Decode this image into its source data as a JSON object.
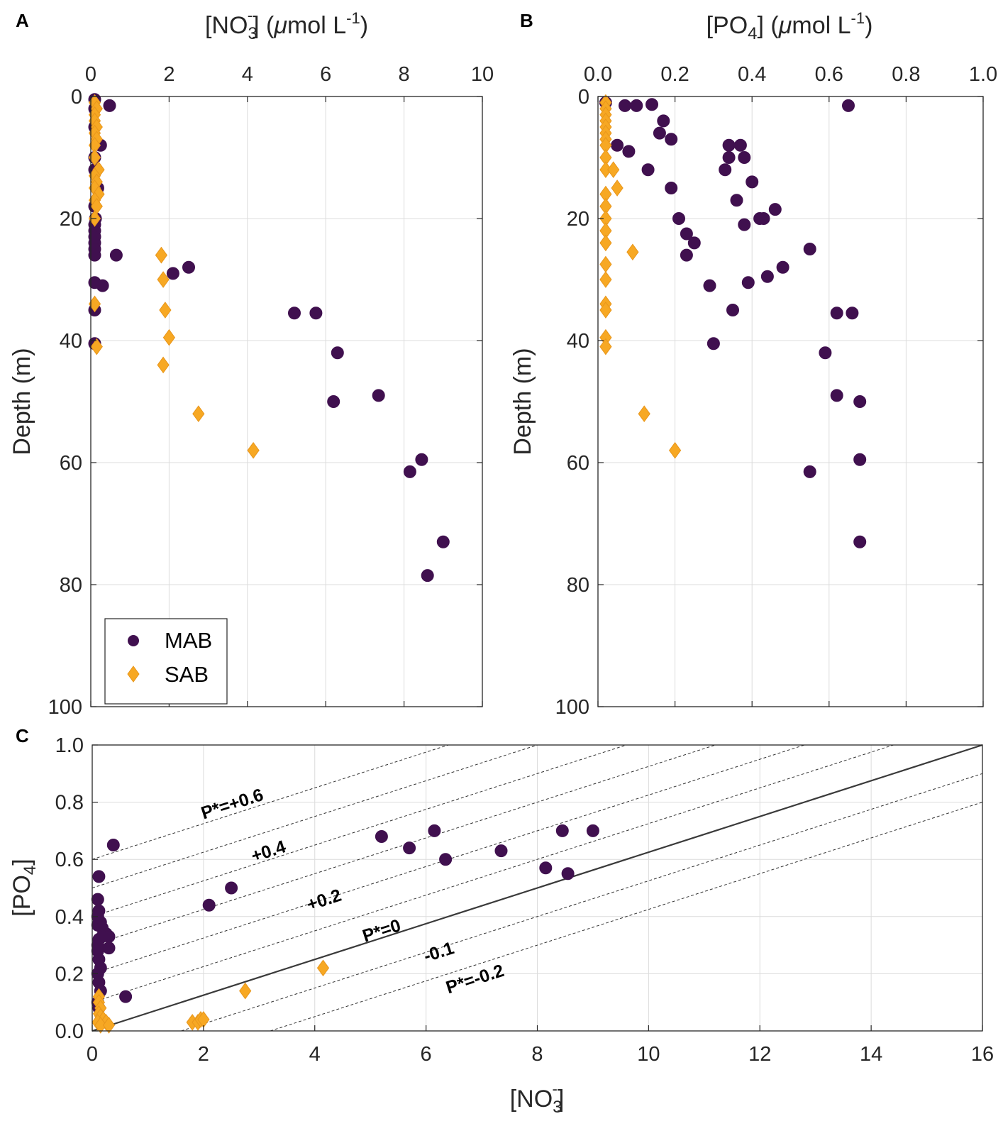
{
  "colors": {
    "MAB": "#40104f",
    "SAB": "#f7a823",
    "redfield": "#3a3a3a",
    "contour": "#333333"
  },
  "chart_data": [
    {
      "panel": "A",
      "type": "scatter",
      "xlabel": {
        "main": "[NO",
        "sub": "3",
        "sup": "-",
        "units_pre": "] (",
        "mu": "μ",
        "units_post": "mol L",
        "units_sup": "-1",
        "close": ")"
      },
      "ylabel": "Depth (m)",
      "xlim": [
        0,
        10
      ],
      "ylim": [
        0,
        100
      ],
      "xticks": [
        "0",
        "2",
        "4",
        "6",
        "8",
        "10"
      ],
      "yticks": [
        "0",
        "20",
        "40",
        "60",
        "80",
        "100"
      ],
      "x_axis_position": "top",
      "y_reversed": true,
      "legend": {
        "position": "bottom-left",
        "entries": [
          "MAB",
          "SAB"
        ]
      },
      "series": [
        {
          "name": "MAB",
          "marker": "circle",
          "x": [
            0.1,
            0.48,
            0.1,
            0.1,
            0.25,
            0.1,
            0.1,
            0.18,
            0.1,
            0.12,
            0.1,
            0.1,
            0.1,
            0.1,
            0.1,
            0.1,
            0.65,
            2.5,
            2.1,
            0.1,
            0.3,
            0.1,
            5.2,
            5.75,
            0.1,
            6.3,
            7.35,
            6.2,
            8.45,
            8.15,
            9.0,
            8.6
          ],
          "y": [
            0.5,
            1.5,
            2,
            5,
            8,
            10,
            12,
            15,
            18,
            20,
            21,
            22,
            23,
            24,
            25,
            26,
            26,
            28,
            29,
            30.5,
            31,
            35,
            35.5,
            35.5,
            40.5,
            42,
            49,
            50,
            59.5,
            61.5,
            73,
            78.5
          ]
        },
        {
          "name": "SAB",
          "marker": "diamond",
          "x": [
            0.1,
            0.15,
            0.1,
            0.1,
            0.15,
            0.1,
            0.15,
            0.1,
            0.1,
            0.2,
            0.1,
            0.15,
            0.1,
            0.2,
            0.1,
            0.15,
            0.1,
            1.8,
            1.85,
            1.9,
            2.0,
            1.85,
            2.75,
            4.15,
            0.1,
            0.15
          ],
          "y": [
            1,
            2,
            3,
            4,
            5,
            6,
            7,
            8,
            10,
            12,
            13,
            14,
            15,
            16,
            17,
            18,
            20,
            26,
            30,
            35,
            39.5,
            44,
            52,
            58,
            34,
            41
          ]
        }
      ]
    },
    {
      "panel": "B",
      "type": "scatter",
      "xlabel": {
        "main": "[PO",
        "sub": "4",
        "units_pre": "] (",
        "mu": "μ",
        "units_post": "mol L",
        "units_sup": "-1",
        "close": ")"
      },
      "ylabel": "Depth (m)",
      "xlim": [
        0,
        1
      ],
      "ylim": [
        0,
        100
      ],
      "xticks": [
        "0.0",
        "0.2",
        "0.4",
        "0.6",
        "0.8",
        "1.0"
      ],
      "yticks": [
        "0",
        "20",
        "40",
        "60",
        "80",
        "100"
      ],
      "x_axis_position": "top",
      "y_reversed": true,
      "series": [
        {
          "name": "MAB",
          "marker": "circle",
          "x": [
            0.02,
            0.07,
            0.1,
            0.14,
            0.65,
            0.17,
            0.16,
            0.19,
            0.05,
            0.08,
            0.34,
            0.37,
            0.38,
            0.33,
            0.34,
            0.4,
            0.13,
            0.19,
            0.42,
            0.46,
            0.36,
            0.43,
            0.38,
            0.21,
            0.23,
            0.25,
            0.55,
            0.23,
            0.48,
            0.44,
            0.39,
            0.35,
            0.29,
            0.62,
            0.66,
            0.3,
            0.59,
            0.62,
            0.68,
            0.68,
            0.55,
            0.68
          ],
          "y": [
            1,
            1.5,
            1.5,
            1.3,
            1.5,
            4,
            6,
            7,
            8,
            9,
            8,
            8,
            10,
            12,
            10,
            14,
            12,
            15,
            20,
            18.5,
            17,
            20,
            21,
            20,
            22.5,
            24,
            25,
            26,
            28,
            29.5,
            30.5,
            35,
            31,
            35.5,
            35.5,
            40.5,
            42,
            49,
            50,
            59.5,
            61.5,
            73
          ]
        },
        {
          "name": "SAB",
          "marker": "diamond",
          "x": [
            0.02,
            0.02,
            0.02,
            0.02,
            0.02,
            0.02,
            0.02,
            0.02,
            0.02,
            0.02,
            0.04,
            0.05,
            0.02,
            0.02,
            0.02,
            0.02,
            0.02,
            0.09,
            0.02,
            0.02,
            0.02,
            0.02,
            0.02,
            0.02,
            0.12,
            0.2
          ],
          "y": [
            1,
            2,
            3,
            4,
            5,
            6,
            7,
            8,
            10,
            12,
            12,
            15,
            16,
            18,
            20,
            22,
            24,
            25.5,
            27.5,
            30,
            34,
            35,
            39.5,
            41,
            52,
            58
          ]
        }
      ]
    },
    {
      "panel": "C",
      "type": "scatter",
      "xlabel": {
        "main": "[NO",
        "sub": "3",
        "sup": "-",
        "close": "]"
      },
      "ylabel": {
        "main": "[PO",
        "sub": "4",
        "close": "]"
      },
      "xlim": [
        0,
        16
      ],
      "ylim": [
        0,
        1
      ],
      "xticks": [
        "0",
        "2",
        "4",
        "6",
        "8",
        "10",
        "12",
        "14",
        "16"
      ],
      "yticks": [
        "0.0",
        "0.2",
        "0.4",
        "0.6",
        "0.8",
        "1.0"
      ],
      "redfield_line": {
        "label": "P*=0",
        "slope": 0.0625,
        "intercept": 0
      },
      "pstar_lines": [
        -0.2,
        -0.1,
        0.1,
        0.2,
        0.3,
        0.4,
        0.5,
        0.6
      ],
      "annotations": [
        {
          "text": "P*=+0.6",
          "x": 2.0,
          "y": 0.74
        },
        {
          "text": "+0.4",
          "x": 2.9,
          "y": 0.59
        },
        {
          "text": "+0.2",
          "x": 3.9,
          "y": 0.42
        },
        {
          "text": "P*=0",
          "x": 4.9,
          "y": 0.31
        },
        {
          "text": "-0.1",
          "x": 6.0,
          "y": 0.24
        },
        {
          "text": "P*=-0.2",
          "x": 6.4,
          "y": 0.13
        }
      ],
      "series": [
        {
          "name": "MAB",
          "marker": "circle",
          "x": [
            0.38,
            0.12,
            0.1,
            0.12,
            0.1,
            0.15,
            0.1,
            0.18,
            0.25,
            0.12,
            0.18,
            0.3,
            0.1,
            0.3,
            0.1,
            0.12,
            0.15,
            0.1,
            0.12,
            0.15,
            0.1,
            0.12,
            0.6,
            2.5,
            2.1,
            5.2,
            5.7,
            6.15,
            6.35,
            7.35,
            8.15,
            8.45,
            8.55,
            9.0
          ],
          "y": [
            0.65,
            0.54,
            0.46,
            0.42,
            0.4,
            0.38,
            0.37,
            0.36,
            0.34,
            0.32,
            0.33,
            0.33,
            0.3,
            0.29,
            0.28,
            0.25,
            0.22,
            0.2,
            0.17,
            0.14,
            0.1,
            0.08,
            0.12,
            0.5,
            0.44,
            0.68,
            0.64,
            0.7,
            0.6,
            0.63,
            0.57,
            0.7,
            0.55,
            0.7
          ]
        },
        {
          "name": "SAB",
          "marker": "diamond",
          "x": [
            0.12,
            0.12,
            0.15,
            0.12,
            0.15,
            0.2,
            0.1,
            0.25,
            0.15,
            0.3,
            1.8,
            1.9,
            1.95,
            2.0,
            2.75,
            4.15
          ],
          "y": [
            0.12,
            0.1,
            0.08,
            0.06,
            0.05,
            0.04,
            0.03,
            0.03,
            0.02,
            0.02,
            0.03,
            0.03,
            0.04,
            0.04,
            0.14,
            0.22
          ]
        }
      ]
    }
  ],
  "panel_labels": [
    "A",
    "B",
    "C"
  ]
}
